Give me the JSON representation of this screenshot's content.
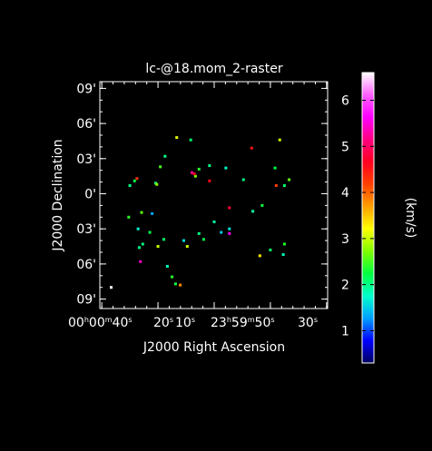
{
  "chart_data": {
    "type": "scatter",
    "title": "lc-@18.mom_2-raster",
    "xlabel": "J2000 Right Ascension",
    "ylabel": "J2000 Declination",
    "x_ticks": [
      {
        "main": "00",
        "sup": "h"
      },
      {
        "main": "00",
        "sup": "m"
      },
      {
        "main": "40",
        "sup": "s"
      },
      {
        "main": "20",
        "sup": "s"
      },
      {
        "main": "10",
        "sup": "s"
      },
      {
        "main": "23",
        "sup": "h"
      },
      {
        "main": "59",
        "sup": "m"
      },
      {
        "main": "50",
        "sup": "s"
      },
      {
        "main": "30",
        "sup": "s"
      }
    ],
    "y_ticks": [
      "09'",
      "06'",
      "03'",
      "0'",
      "03'",
      "06'",
      "09'"
    ],
    "y_tick_values": [
      9,
      6,
      3,
      0,
      -3,
      -6,
      -9
    ],
    "ylim": [
      -10,
      10
    ],
    "colorbar": {
      "label": "(km/s)",
      "min": 0.3,
      "max": 6.6,
      "ticks": [
        "1",
        "2",
        "3",
        "4",
        "5",
        "6"
      ],
      "tick_values": [
        1,
        2,
        3,
        4,
        5,
        6
      ],
      "colors": [
        "#000060",
        "#0000ff",
        "#00a0ff",
        "#00ffcc",
        "#00ff40",
        "#80ff00",
        "#ffff00",
        "#ffa000",
        "#ff4000",
        "#ff0020",
        "#ff0080",
        "#ff00ff",
        "#ff60ff",
        "#ffffff"
      ]
    },
    "points": [
      {
        "x": 5.6,
        "y": 4.6,
        "v": 3.0
      },
      {
        "x": 5.2,
        "y": 2.2,
        "v": 2.2
      },
      {
        "x": 2.5,
        "y": 1.2,
        "v": 2.0
      },
      {
        "x": 1.0,
        "y": 2.2,
        "v": 1.8
      },
      {
        "x": -1.3,
        "y": 2.1,
        "v": 2.4
      },
      {
        "x": -1.6,
        "y": 1.5,
        "v": 2.7
      },
      {
        "x": -1.7,
        "y": 1.7,
        "v": 4.7
      },
      {
        "x": -1.9,
        "y": 1.8,
        "v": 5.2
      },
      {
        "x": -3.2,
        "y": 4.8,
        "v": 3.1
      },
      {
        "x": -4.2,
        "y": 3.2,
        "v": 2.0
      },
      {
        "x": -4.6,
        "y": 2.3,
        "v": 2.5
      },
      {
        "x": -5.0,
        "y": 0.9,
        "v": 2.0
      },
      {
        "x": -6.6,
        "y": 1.3,
        "v": 4.3
      },
      {
        "x": -6.8,
        "y": 1.1,
        "v": 2.2
      },
      {
        "x": -7.2,
        "y": 0.7,
        "v": 2.0
      },
      {
        "x": -4.9,
        "y": 0.8,
        "v": 2.8
      },
      {
        "x": -5.3,
        "y": -1.7,
        "v": 1.3
      },
      {
        "x": -7.3,
        "y": -2.0,
        "v": 2.4
      },
      {
        "x": 4.1,
        "y": -1.0,
        "v": 2.3
      },
      {
        "x": 3.3,
        "y": -1.5,
        "v": 1.9
      },
      {
        "x": 1.3,
        "y": -3.0,
        "v": 1.6
      },
      {
        "x": 0.6,
        "y": -3.3,
        "v": 1.5
      },
      {
        "x": 0.0,
        "y": -2.4,
        "v": 1.9
      },
      {
        "x": -1.3,
        "y": -3.4,
        "v": 2.0
      },
      {
        "x": -2.6,
        "y": -4.0,
        "v": 1.6
      },
      {
        "x": -4.3,
        "y": -3.9,
        "v": 2.1
      },
      {
        "x": -5.5,
        "y": -3.3,
        "v": 2.2
      },
      {
        "x": 1.3,
        "y": -3.4,
        "v": 5.6
      },
      {
        "x": -6.4,
        "y": -4.6,
        "v": 2.0
      },
      {
        "x": 6.0,
        "y": -4.3,
        "v": 2.4
      },
      {
        "x": 5.9,
        "y": -5.2,
        "v": 1.8
      },
      {
        "x": 3.9,
        "y": -5.3,
        "v": 3.3
      },
      {
        "x": -4.0,
        "y": -6.2,
        "v": 1.8
      },
      {
        "x": -3.6,
        "y": -7.1,
        "v": 2.4
      },
      {
        "x": -2.9,
        "y": -7.8,
        "v": 3.8
      },
      {
        "x": -3.3,
        "y": -7.7,
        "v": 2.3
      },
      {
        "x": -4.8,
        "y": -4.5,
        "v": 3.0
      },
      {
        "x": -6.1,
        "y": -4.3,
        "v": 2.0
      },
      {
        "x": 3.2,
        "y": 3.9,
        "v": 4.5
      },
      {
        "x": 4.8,
        "y": -4.8,
        "v": 2.1
      },
      {
        "x": -2.3,
        "y": -4.5,
        "v": 3.0
      },
      {
        "x": -8.8,
        "y": -8.0,
        "v": 6.6
      },
      {
        "x": -6.3,
        "y": -5.8,
        "v": 5.4
      },
      {
        "x": -0.9,
        "y": -3.9,
        "v": 2.2
      },
      {
        "x": -0.4,
        "y": 1.1,
        "v": 4.6
      },
      {
        "x": -2.0,
        "y": 4.6,
        "v": 2.1
      },
      {
        "x": -0.4,
        "y": 2.4,
        "v": 2.0
      },
      {
        "x": 1.3,
        "y": -1.2,
        "v": 4.8
      },
      {
        "x": -6.2,
        "y": -1.6,
        "v": 2.6
      },
      {
        "x": -6.5,
        "y": -3.0,
        "v": 1.7
      },
      {
        "x": 6.4,
        "y": 1.2,
        "v": 2.6
      },
      {
        "x": 5.3,
        "y": 0.7,
        "v": 4.2
      },
      {
        "x": 6.0,
        "y": 0.7,
        "v": 2.1
      }
    ]
  }
}
